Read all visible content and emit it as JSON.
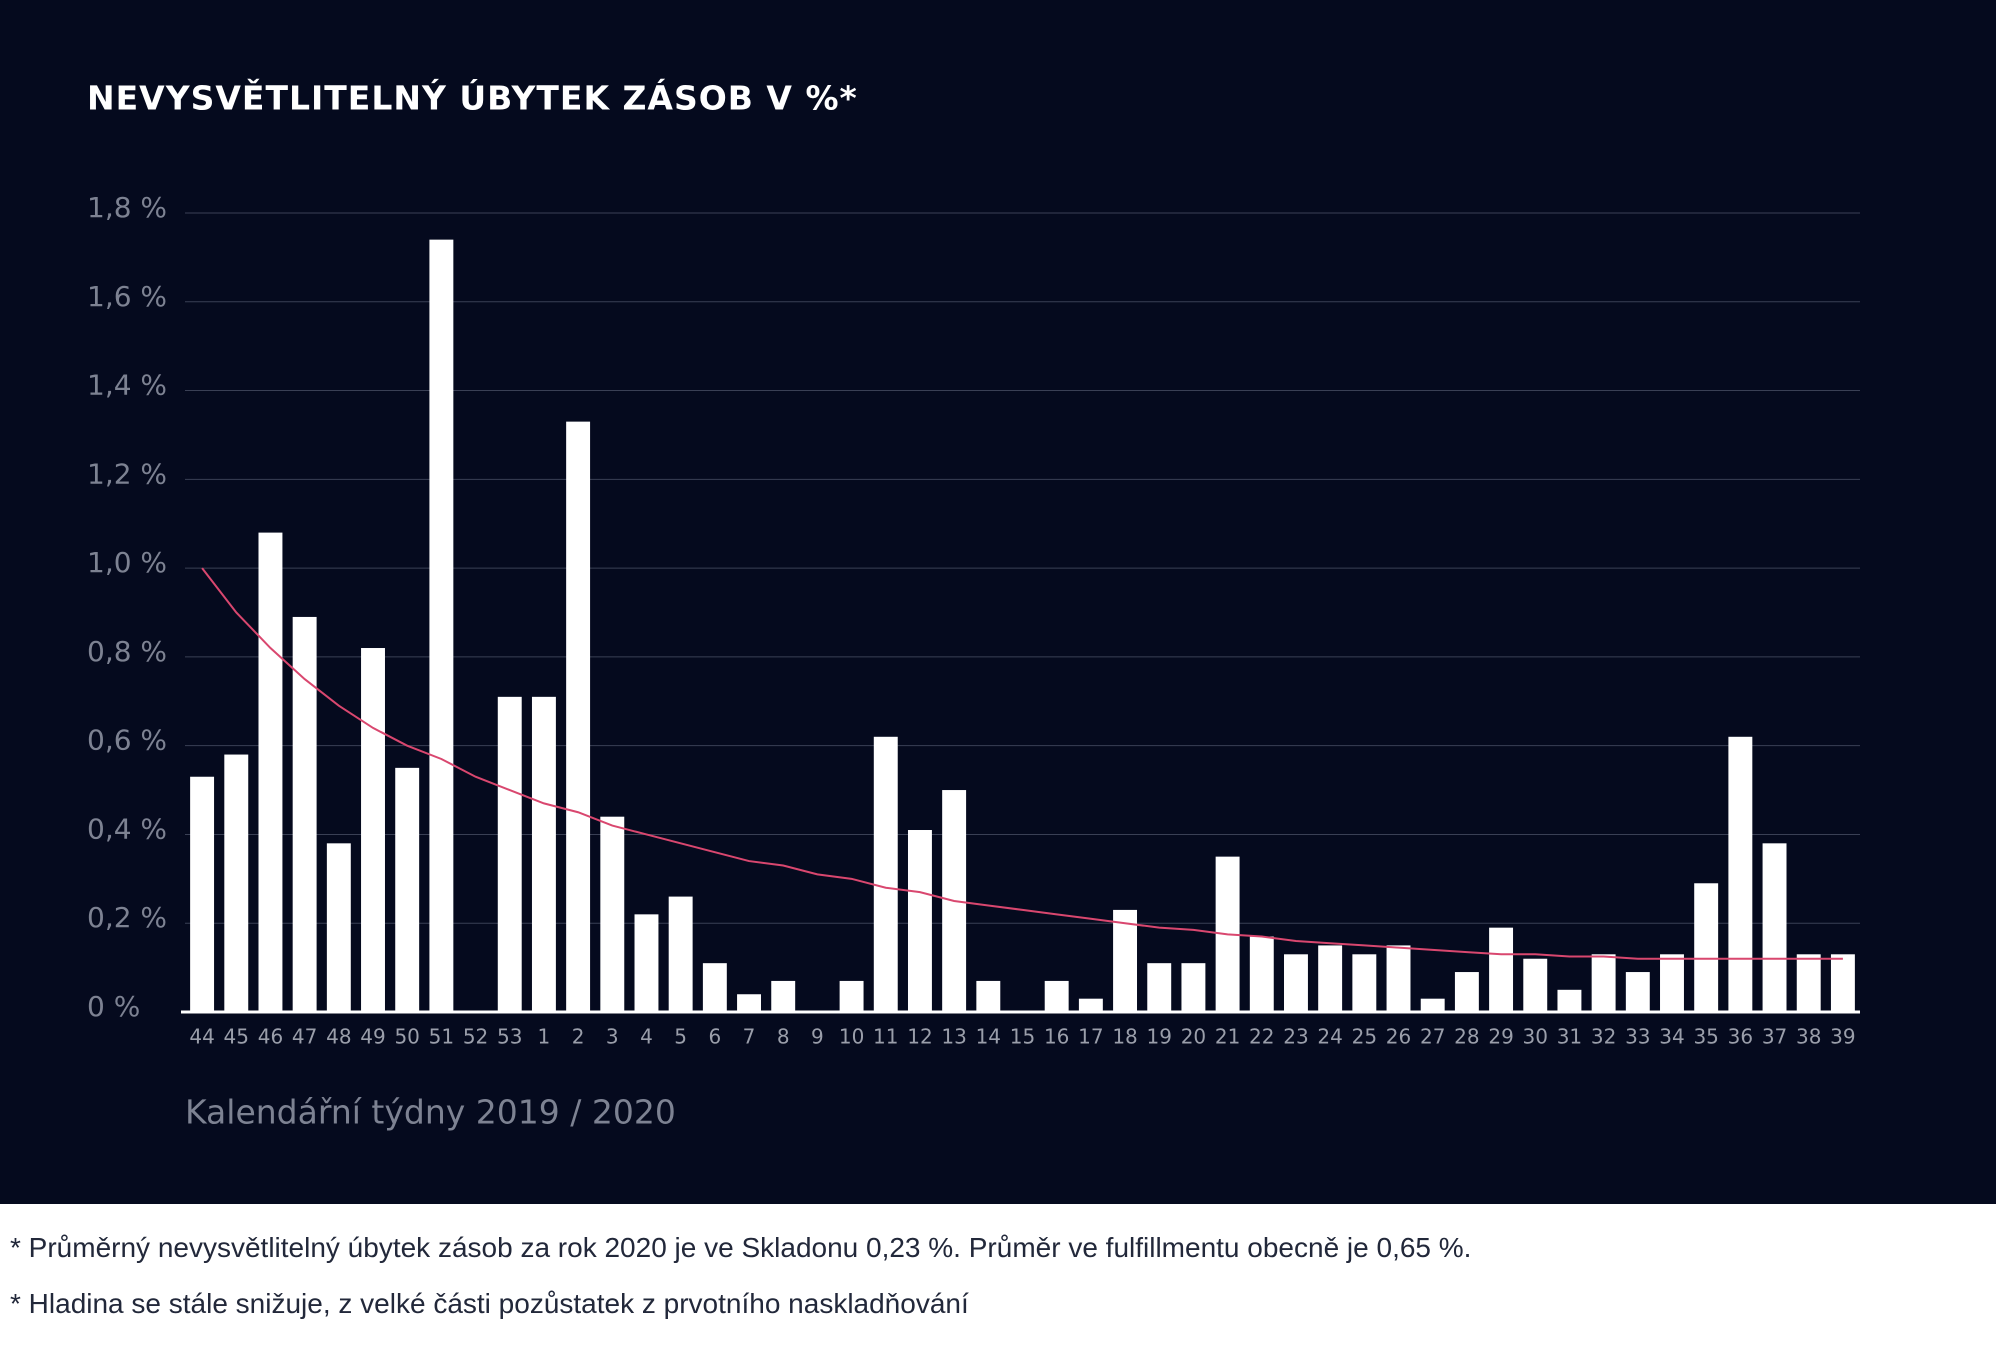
{
  "chart_data": {
    "type": "bar",
    "title": "NEVYSVĚTLITELNÝ ÚBYTEK ZÁSOB V %*",
    "x_label": "Kalendářní týdny 2019 / 2020",
    "categories": [
      "44",
      "45",
      "46",
      "47",
      "48",
      "49",
      "50",
      "51",
      "52",
      "53",
      "1",
      "2",
      "3",
      "4",
      "5",
      "6",
      "7",
      "8",
      "9",
      "10",
      "11",
      "12",
      "13",
      "14",
      "15",
      "16",
      "17",
      "18",
      "19",
      "20",
      "21",
      "22",
      "23",
      "24",
      "25",
      "26",
      "27",
      "28",
      "29",
      "30",
      "31",
      "32",
      "33",
      "34",
      "35",
      "36",
      "37",
      "38",
      "39"
    ],
    "series": [
      {
        "type": "bar",
        "color": "#ffffff",
        "values": [
          0.53,
          0.58,
          1.08,
          0.89,
          0.38,
          0.82,
          0.55,
          1.74,
          0,
          0.71,
          0.71,
          1.33,
          0.44,
          0.22,
          0.26,
          0.11,
          0.04,
          0.07,
          0,
          0.07,
          0.62,
          0.41,
          0.5,
          0.07,
          0,
          0.07,
          0.03,
          0.23,
          0.11,
          0.11,
          0.35,
          0.17,
          0.13,
          0.15,
          0.13,
          0.15,
          0.03,
          0.09,
          0.19,
          0.12,
          0.05,
          0.13,
          0.09,
          0.13,
          0.29,
          0.62,
          0.38,
          0.13,
          0.13
        ]
      },
      {
        "type": "line",
        "color": "#d9476f",
        "values": [
          1.0,
          0.9,
          0.82,
          0.75,
          0.69,
          0.64,
          0.6,
          0.57,
          0.53,
          0.5,
          0.47,
          0.45,
          0.42,
          0.4,
          0.38,
          0.36,
          0.34,
          0.33,
          0.31,
          0.3,
          0.28,
          0.27,
          0.25,
          0.24,
          0.23,
          0.22,
          0.21,
          0.2,
          0.19,
          0.185,
          0.175,
          0.17,
          0.16,
          0.155,
          0.15,
          0.145,
          0.14,
          0.135,
          0.13,
          0.13,
          0.125,
          0.125,
          0.12,
          0.12,
          0.12,
          0.12,
          0.12,
          0.12,
          0.12
        ]
      }
    ],
    "ylim": [
      0,
      1.8
    ],
    "yticks": [
      {
        "value": 0,
        "label": "0 %"
      },
      {
        "value": 0.2,
        "label": "0,2 %"
      },
      {
        "value": 0.4,
        "label": "0,4 %"
      },
      {
        "value": 0.6,
        "label": "0,6 %"
      },
      {
        "value": 0.8,
        "label": "0,8 %"
      },
      {
        "value": 1.0,
        "label": "1,0 %"
      },
      {
        "value": 1.2,
        "label": "1,2 %"
      },
      {
        "value": 1.4,
        "label": "1,4 %"
      },
      {
        "value": 1.6,
        "label": "1,6 %"
      },
      {
        "value": 1.8,
        "label": "1,8 %"
      }
    ],
    "grid": true,
    "footnotes": [
      "* Průměrný nevysvětlitelný úbytek zásob za rok 2020 je ve Skladonu 0,23 %. Průměr ve fulfillmentu obecně je 0,65 %.",
      "* Hladina se stále snižuje, z velké části pozůstatek z prvotního naskladňování"
    ]
  }
}
